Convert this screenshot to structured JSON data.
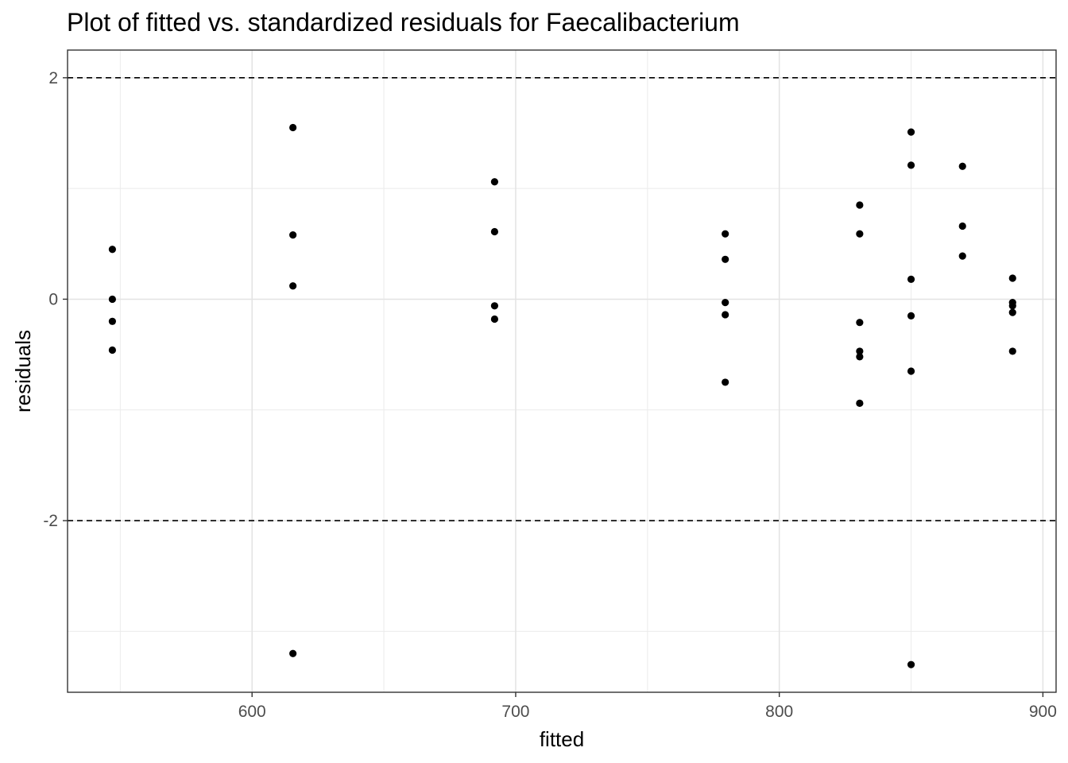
{
  "chart_data": {
    "type": "scatter",
    "title": "Plot of fitted vs. standardized residuals for Faecalibacterium",
    "xlabel": "fitted",
    "ylabel": "residuals",
    "xlim": [
      530,
      905
    ],
    "ylim": [
      -3.55,
      2.25
    ],
    "x_ticks": [
      600,
      700,
      800,
      900
    ],
    "x_tick_labels": [
      "600",
      "700",
      "800",
      "900"
    ],
    "y_ticks": [
      2,
      0,
      -2
    ],
    "y_tick_labels": [
      "2",
      "0",
      "-2"
    ],
    "x_minor_grid": [
      550,
      650,
      750,
      850
    ],
    "y_minor_grid": [
      1,
      -1,
      -3
    ],
    "reference_lines": [
      2,
      -2
    ],
    "grid": true,
    "point_color": "#000000",
    "points": [
      {
        "x": 547,
        "y": 0.45
      },
      {
        "x": 547,
        "y": 0.0
      },
      {
        "x": 547,
        "y": -0.2
      },
      {
        "x": 547,
        "y": -0.46
      },
      {
        "x": 615.5,
        "y": 1.55
      },
      {
        "x": 615.5,
        "y": 0.58
      },
      {
        "x": 615.5,
        "y": 0.12
      },
      {
        "x": 615.5,
        "y": -3.2
      },
      {
        "x": 692,
        "y": 1.06
      },
      {
        "x": 692,
        "y": 0.61
      },
      {
        "x": 692,
        "y": -0.06
      },
      {
        "x": 692,
        "y": -0.18
      },
      {
        "x": 779.5,
        "y": 0.59
      },
      {
        "x": 779.5,
        "y": 0.36
      },
      {
        "x": 779.5,
        "y": -0.03
      },
      {
        "x": 779.5,
        "y": -0.14
      },
      {
        "x": 779.5,
        "y": -0.75
      },
      {
        "x": 830.5,
        "y": 0.85
      },
      {
        "x": 830.5,
        "y": 0.59
      },
      {
        "x": 830.5,
        "y": -0.21
      },
      {
        "x": 830.5,
        "y": -0.47
      },
      {
        "x": 830.5,
        "y": -0.52
      },
      {
        "x": 830.5,
        "y": -0.94
      },
      {
        "x": 850,
        "y": 1.51
      },
      {
        "x": 850,
        "y": 1.21
      },
      {
        "x": 850,
        "y": 0.18
      },
      {
        "x": 850,
        "y": -0.15
      },
      {
        "x": 850,
        "y": -0.65
      },
      {
        "x": 850,
        "y": -3.3
      },
      {
        "x": 869.5,
        "y": 1.2
      },
      {
        "x": 869.5,
        "y": 0.66
      },
      {
        "x": 869.5,
        "y": 0.39
      },
      {
        "x": 888.5,
        "y": 0.19
      },
      {
        "x": 888.5,
        "y": -0.03
      },
      {
        "x": 888.5,
        "y": -0.06
      },
      {
        "x": 888.5,
        "y": -0.12
      },
      {
        "x": 888.5,
        "y": -0.47
      }
    ]
  }
}
